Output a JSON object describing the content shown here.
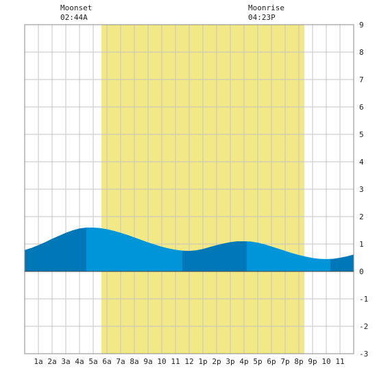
{
  "moon_events": [
    {
      "label": "Moonset",
      "time": "02:44A"
    },
    {
      "label": "Moonrise",
      "time": "04:23P"
    }
  ],
  "chart_data": {
    "type": "area",
    "title": "",
    "xlabel": "",
    "ylabel": "",
    "x_unit": "hours after midnight",
    "xlim": [
      0,
      24
    ],
    "ylim": [
      -3,
      9
    ],
    "grid": true,
    "y_ticks": [
      9,
      8,
      7,
      6,
      5,
      4,
      3,
      2,
      1,
      0,
      -1,
      -2,
      -3
    ],
    "x_tick_labels": [
      "1a",
      "2a",
      "3a",
      "4a",
      "5a",
      "6a",
      "7a",
      "8a",
      "9a",
      "10",
      "11",
      "12",
      "1p",
      "2p",
      "3p",
      "4p",
      "5p",
      "6p",
      "7p",
      "8p",
      "9p",
      "10",
      "11"
    ],
    "daylight": {
      "start": 5.6,
      "end": 20.4
    },
    "tide_extremes": [
      {
        "x": 4.5,
        "y": 1.6
      },
      {
        "x": 11.5,
        "y": 0.75
      },
      {
        "x": 16.2,
        "y": 1.1
      },
      {
        "x": 22.3,
        "y": 0.45
      }
    ],
    "series": [
      {
        "x": [
          0,
          0.5,
          1,
          1.5,
          2,
          2.5,
          3,
          3.5,
          4,
          4.5,
          5,
          5.5,
          6,
          6.5,
          7,
          7.5,
          8,
          8.5,
          9,
          9.5,
          10,
          10.5,
          11,
          11.5,
          12,
          12.5,
          13,
          13.5,
          14,
          14.5,
          15,
          15.5,
          16,
          16.5,
          17,
          17.5,
          18,
          18.5,
          19,
          19.5,
          20,
          20.5,
          21,
          21.5,
          22,
          22.5,
          23,
          23.5,
          24
        ],
        "y": [
          0.78,
          0.86,
          0.96,
          1.07,
          1.19,
          1.3,
          1.41,
          1.5,
          1.57,
          1.6,
          1.6,
          1.58,
          1.54,
          1.48,
          1.41,
          1.33,
          1.24,
          1.15,
          1.06,
          0.98,
          0.9,
          0.84,
          0.79,
          0.76,
          0.75,
          0.77,
          0.82,
          0.89,
          0.96,
          1.02,
          1.07,
          1.1,
          1.1,
          1.09,
          1.05,
          0.99,
          0.91,
          0.83,
          0.75,
          0.67,
          0.6,
          0.54,
          0.49,
          0.46,
          0.45,
          0.46,
          0.5,
          0.55,
          0.62
        ]
      }
    ],
    "colors": {
      "daylight": "#f2e986",
      "tide_light": "#0095d9",
      "tide_dark": "#0078b8",
      "grid": "#c4c4c4",
      "frame": "#888888",
      "zero_line": "#444444",
      "text": "#222222"
    }
  }
}
